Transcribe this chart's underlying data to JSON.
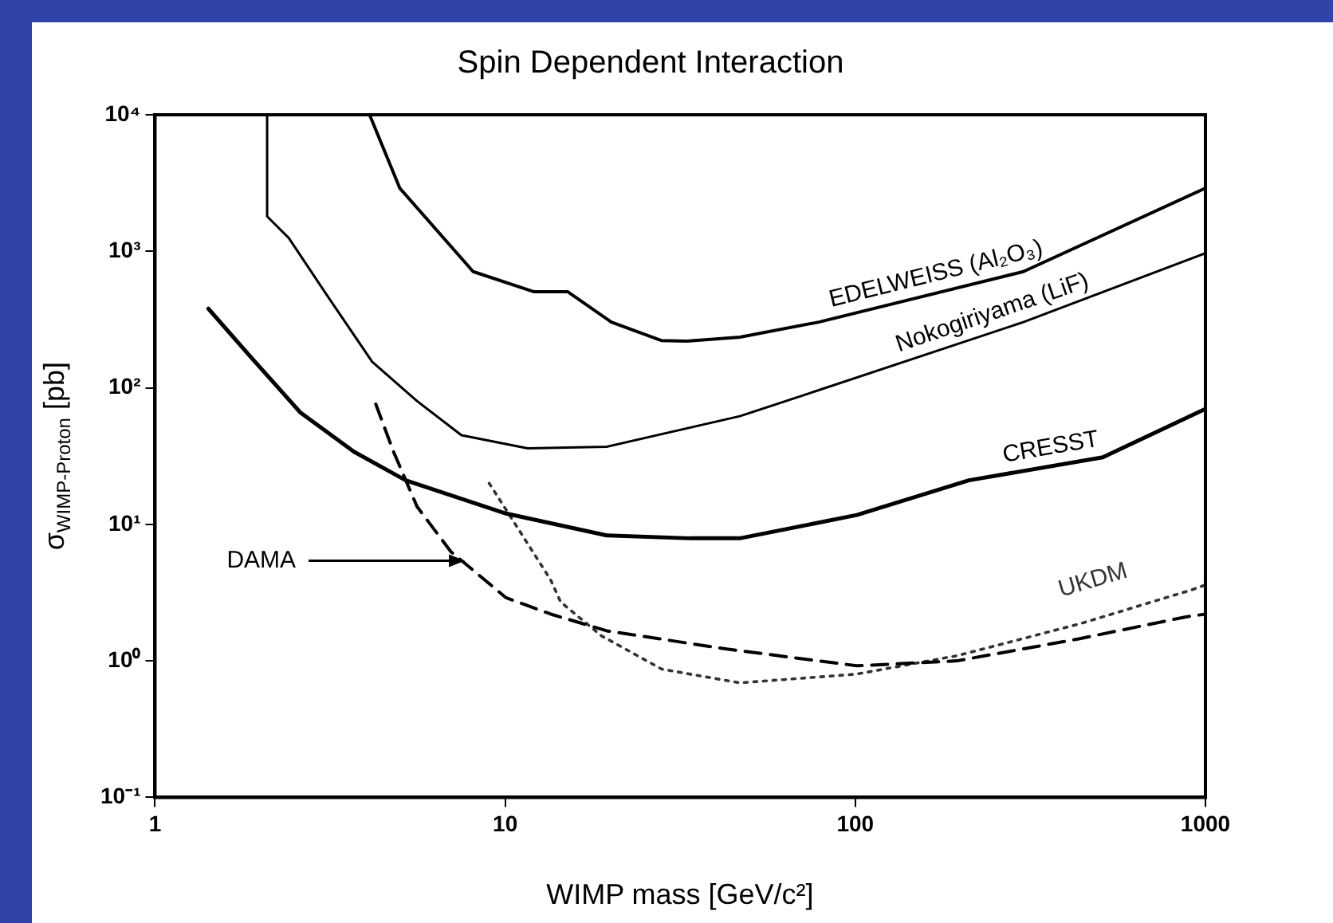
{
  "chart_data": {
    "type": "line",
    "title": "Spin Dependent Interaction",
    "xlabel": "WIMP mass [GeV/c²]",
    "ylabel": "σ$_{WIMP-Proton}$ [pb]",
    "log": "xy",
    "grid": false,
    "legend": false,
    "marker": "none",
    "xlim": [
      1,
      1000
    ],
    "xticks": [
      1,
      10,
      100,
      1000
    ],
    "ylim": [
      0.1,
      10000
    ],
    "yticks": [
      {
        "value": 0.1,
        "label": "10⁻¹"
      },
      {
        "value": 1,
        "label": "10⁰"
      },
      {
        "value": 10,
        "label": "10¹"
      },
      {
        "value": 100,
        "label": "10²"
      },
      {
        "value": 1000,
        "label": "10³"
      },
      {
        "value": 10000,
        "label": "10⁴"
      }
    ],
    "series": [
      {
        "name": "EDELWEISS (Al₂O₃)",
        "color": "#000000",
        "line_style": "solid",
        "x": [
          4.1,
          5.0,
          8.1,
          12.1,
          15.1,
          20.1,
          27.9,
          33,
          46.8,
          78.6,
          302,
          1000
        ],
        "values": [
          10000,
          2900,
          710,
          505,
          505,
          303,
          222,
          220,
          235,
          303,
          710,
          2900
        ]
      },
      {
        "name": "Nokogiriyama (LiF)",
        "color": "#000000",
        "line_style": "solid",
        "x": [
          2.09,
          2.09,
          2.41,
          3.1,
          4.17,
          5.6,
          7.5,
          11.6,
          19.5,
          46.8,
          70,
          302,
          1000
        ],
        "values": [
          10000,
          1800,
          1250,
          475,
          155,
          80,
          45,
          36,
          37,
          62,
          87,
          303,
          970
        ]
      },
      {
        "name": "CRESST",
        "color": "#000000",
        "line_style": "solid",
        "x": [
          1.42,
          1.87,
          2.6,
          3.7,
          5.2,
          10.06,
          19.5,
          33.7,
          46.8,
          101,
          211,
          509,
          1000
        ],
        "values": [
          380,
          170,
          66,
          34,
          21,
          12,
          8.3,
          7.9,
          7.9,
          11.7,
          21,
          31,
          70
        ]
      },
      {
        "name": "DAMA",
        "color": "#000000",
        "line_style": "dashed",
        "x": [
          4.27,
          4.8,
          5.6,
          7.0,
          10.06,
          13.5,
          19.5,
          43,
          101,
          195,
          435,
          880,
          1000
        ],
        "values": [
          76,
          34,
          13.5,
          6.3,
          2.9,
          2.2,
          1.66,
          1.22,
          0.92,
          1.0,
          1.45,
          2.1,
          2.2
        ]
      },
      {
        "name": "UKDM",
        "color": "#333333",
        "line_style": "dotted",
        "x": [
          9.0,
          11.2,
          13.5,
          14.4,
          18.8,
          28,
          46.8,
          101,
          195,
          435,
          910,
          1000
        ],
        "values": [
          20,
          8.3,
          3.9,
          2.7,
          1.53,
          0.87,
          0.69,
          0.8,
          1.09,
          1.86,
          3.3,
          3.6
        ]
      }
    ]
  }
}
